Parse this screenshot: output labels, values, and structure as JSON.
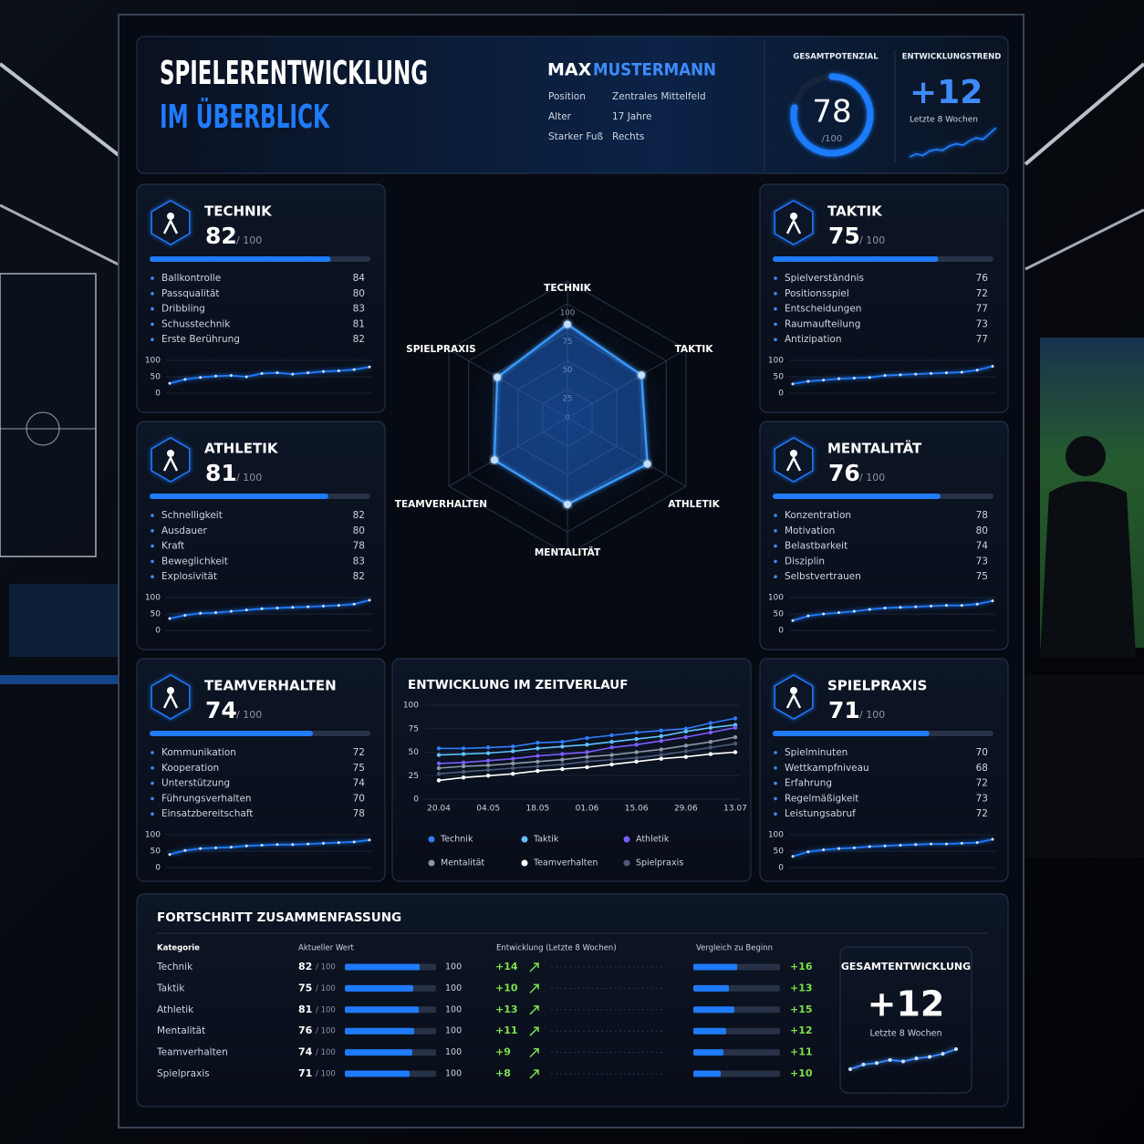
{
  "header": {
    "title": [
      "SPIELERENTWICKLUNG",
      "IM ÜBERBLICK"
    ],
    "first_name": "MAX",
    "last_name": "MUSTERMANN",
    "info": [
      [
        "Position",
        "Zentrales Mittelfeld"
      ],
      [
        "Alter",
        "17 Jahre"
      ],
      [
        "Starker Fuß",
        "Rechts"
      ]
    ]
  },
  "potential": {
    "label": "GESAMTPOTENZIAL",
    "value": 78,
    "scale": {
      "value": 100,
      "label": "/100"
    }
  },
  "trend": {
    "label": "ENTWICKLUNGSTREND",
    "value": "+12",
    "period": "Letzte 8 Wochen",
    "values": [
      40,
      44,
      42,
      48,
      50,
      49,
      55,
      58,
      56,
      62,
      66,
      64,
      72,
      80
    ]
  },
  "cards": [
    {
      "name": "TECHNIK",
      "score": 82,
      "scale": {
        "value": 100,
        "label": "/ 100"
      },
      "items": [
        [
          "Ballkontrolle",
          84
        ],
        [
          "Passqualität",
          80
        ],
        [
          "Dribbling",
          83
        ],
        [
          "Schusstechnik",
          81
        ],
        [
          "Erste Berührung",
          82
        ]
      ],
      "spark": {
        "ylim": [
          0,
          100
        ],
        "yticks": [
          100,
          50,
          0
        ],
        "values": [
          30,
          42,
          48,
          52,
          54,
          50,
          60,
          62,
          58,
          62,
          66,
          68,
          72,
          80
        ]
      }
    },
    {
      "name": "TAKTIK",
      "score": 75,
      "scale": {
        "value": 100,
        "label": "/ 100"
      },
      "items": [
        [
          "Spielverständnis",
          76
        ],
        [
          "Positionsspiel",
          72
        ],
        [
          "Entscheidungen",
          77
        ],
        [
          "Raumaufteilung",
          73
        ],
        [
          "Antizipation",
          77
        ]
      ],
      "spark": {
        "ylim": [
          0,
          100
        ],
        "yticks": [
          100,
          50,
          0
        ],
        "values": [
          28,
          36,
          40,
          44,
          46,
          48,
          54,
          56,
          58,
          60,
          62,
          64,
          70,
          82
        ]
      }
    },
    {
      "name": "ATHLETIK",
      "score": 81,
      "scale": {
        "value": 100,
        "label": "/ 100"
      },
      "items": [
        [
          "Schnelligkeit",
          82
        ],
        [
          "Ausdauer",
          80
        ],
        [
          "Kraft",
          78
        ],
        [
          "Beweglichkeit",
          83
        ],
        [
          "Explosivität",
          82
        ]
      ],
      "spark": {
        "ylim": [
          0,
          100
        ],
        "yticks": [
          100,
          50,
          0
        ],
        "values": [
          36,
          46,
          52,
          54,
          58,
          62,
          66,
          68,
          70,
          72,
          74,
          76,
          80,
          92
        ]
      }
    },
    {
      "name": "MENTALITÄT",
      "score": 76,
      "scale": {
        "value": 100,
        "label": "/ 100"
      },
      "items": [
        [
          "Konzentration",
          78
        ],
        [
          "Motivation",
          80
        ],
        [
          "Belastbarkeit",
          74
        ],
        [
          "Disziplin",
          73
        ],
        [
          "Selbstvertrauen",
          75
        ]
      ],
      "spark": {
        "ylim": [
          0,
          100
        ],
        "yticks": [
          100,
          50,
          0
        ],
        "values": [
          30,
          44,
          50,
          54,
          58,
          64,
          68,
          70,
          72,
          74,
          76,
          76,
          80,
          90
        ]
      }
    },
    {
      "name": "TEAMVERHALTEN",
      "score": 74,
      "scale": {
        "value": 100,
        "label": "/ 100"
      },
      "items": [
        [
          "Kommunikation",
          72
        ],
        [
          "Kooperation",
          75
        ],
        [
          "Unterstützung",
          74
        ],
        [
          "Führungsverhalten",
          70
        ],
        [
          "Einsatzbereitschaft",
          78
        ]
      ],
      "spark": {
        "ylim": [
          0,
          100
        ],
        "yticks": [
          100,
          50,
          0
        ],
        "values": [
          40,
          52,
          58,
          60,
          62,
          66,
          68,
          70,
          70,
          72,
          74,
          76,
          78,
          84
        ]
      }
    },
    {
      "name": "SPIELPRAXIS",
      "score": 71,
      "scale": {
        "value": 100,
        "label": "/ 100"
      },
      "items": [
        [
          "Spielminuten",
          70
        ],
        [
          "Wettkampfniveau",
          68
        ],
        [
          "Erfahrung",
          72
        ],
        [
          "Regelmäßigkeit",
          73
        ],
        [
          "Leistungsabruf",
          72
        ]
      ],
      "spark": {
        "ylim": [
          0,
          100
        ],
        "yticks": [
          100,
          50,
          0
        ],
        "values": [
          34,
          48,
          54,
          58,
          60,
          64,
          66,
          68,
          70,
          72,
          72,
          74,
          76,
          86
        ]
      }
    }
  ],
  "radar": {
    "axes": [
      "TECHNIK",
      "TAKTIK",
      "ATHLETIK",
      "MENTALITÄT",
      "TEAMVERHALTEN",
      "SPIELPRAXIS"
    ],
    "ylim": [
      0,
      100
    ],
    "ticks": [
      0,
      25,
      50,
      75,
      100
    ]
  },
  "timeline": {
    "title": "ENTWICKLUNG IM ZEITVERLAUF",
    "x": [
      "20.04",
      null,
      "04.05",
      null,
      "18.05",
      null,
      "01.06",
      null,
      "15.06",
      null,
      "29.06",
      null,
      "13.07"
    ],
    "ylim": [
      0,
      100
    ],
    "yticks": [
      0,
      25,
      50,
      75,
      100
    ],
    "series": [
      {
        "name": "Technik",
        "color": "#2f7dff",
        "values": [
          54,
          54,
          55,
          56,
          60,
          61,
          65,
          68,
          71,
          73,
          75,
          81,
          86
        ]
      },
      {
        "name": "Taktik",
        "color": "#5fc2ff",
        "values": [
          47,
          48,
          49,
          51,
          54,
          56,
          58,
          61,
          64,
          67,
          72,
          76,
          79
        ]
      },
      {
        "name": "Athletik",
        "color": "#7b5cff",
        "values": [
          38,
          39,
          41,
          43,
          46,
          48,
          50,
          55,
          58,
          62,
          66,
          71,
          76
        ]
      },
      {
        "name": "Mentalität",
        "color": "#8d97aa",
        "values": [
          33,
          35,
          36,
          38,
          40,
          42,
          45,
          47,
          50,
          53,
          57,
          61,
          66
        ]
      },
      {
        "name": "Teamverhalten",
        "color": "#ffffff",
        "values": [
          20,
          23,
          25,
          27,
          30,
          32,
          34,
          37,
          40,
          43,
          45,
          48,
          50
        ]
      },
      {
        "name": "Spielpraxis",
        "color": "#4a5a7a",
        "values": [
          27,
          29,
          31,
          33,
          35,
          37,
          40,
          42,
          44,
          47,
          51,
          55,
          59
        ]
      }
    ]
  },
  "summary": {
    "title": "FORTSCHRITT ZUSAMMENFASSUNG",
    "headers": [
      "Kategorie",
      "Aktueller Wert",
      "Entwicklung (Letzte 8 Wochen)",
      "Vergleich zu Beginn"
    ],
    "rows": [
      {
        "name": "Technik",
        "value": 82,
        "scale": "/ 100",
        "max": 100,
        "change": "+14",
        "compare": {
          "value": 16,
          "label": "+16"
        }
      },
      {
        "name": "Taktik",
        "value": 75,
        "scale": "/ 100",
        "max": 100,
        "change": "+10",
        "compare": {
          "value": 13,
          "label": "+13"
        }
      },
      {
        "name": "Athletik",
        "value": 81,
        "scale": "/ 100",
        "max": 100,
        "change": "+13",
        "compare": {
          "value": 15,
          "label": "+15"
        }
      },
      {
        "name": "Mentalität",
        "value": 76,
        "scale": "/ 100",
        "max": 100,
        "change": "+11",
        "compare": {
          "value": 12,
          "label": "+12"
        }
      },
      {
        "name": "Teamverhalten",
        "value": 74,
        "scale": "/ 100",
        "max": 100,
        "change": "+9",
        "compare": {
          "value": 11,
          "label": "+11"
        }
      },
      {
        "name": "Spielpraxis",
        "value": 71,
        "scale": "/ 100",
        "max": 100,
        "change": "+8",
        "compare": {
          "value": 10,
          "label": "+10"
        }
      }
    ],
    "total": {
      "title": "GESAMTENTWICKLUNG",
      "value": "+12",
      "period": "Letzte 8 Wochen",
      "values": [
        40,
        46,
        48,
        52,
        50,
        54,
        56,
        60,
        66
      ]
    }
  }
}
